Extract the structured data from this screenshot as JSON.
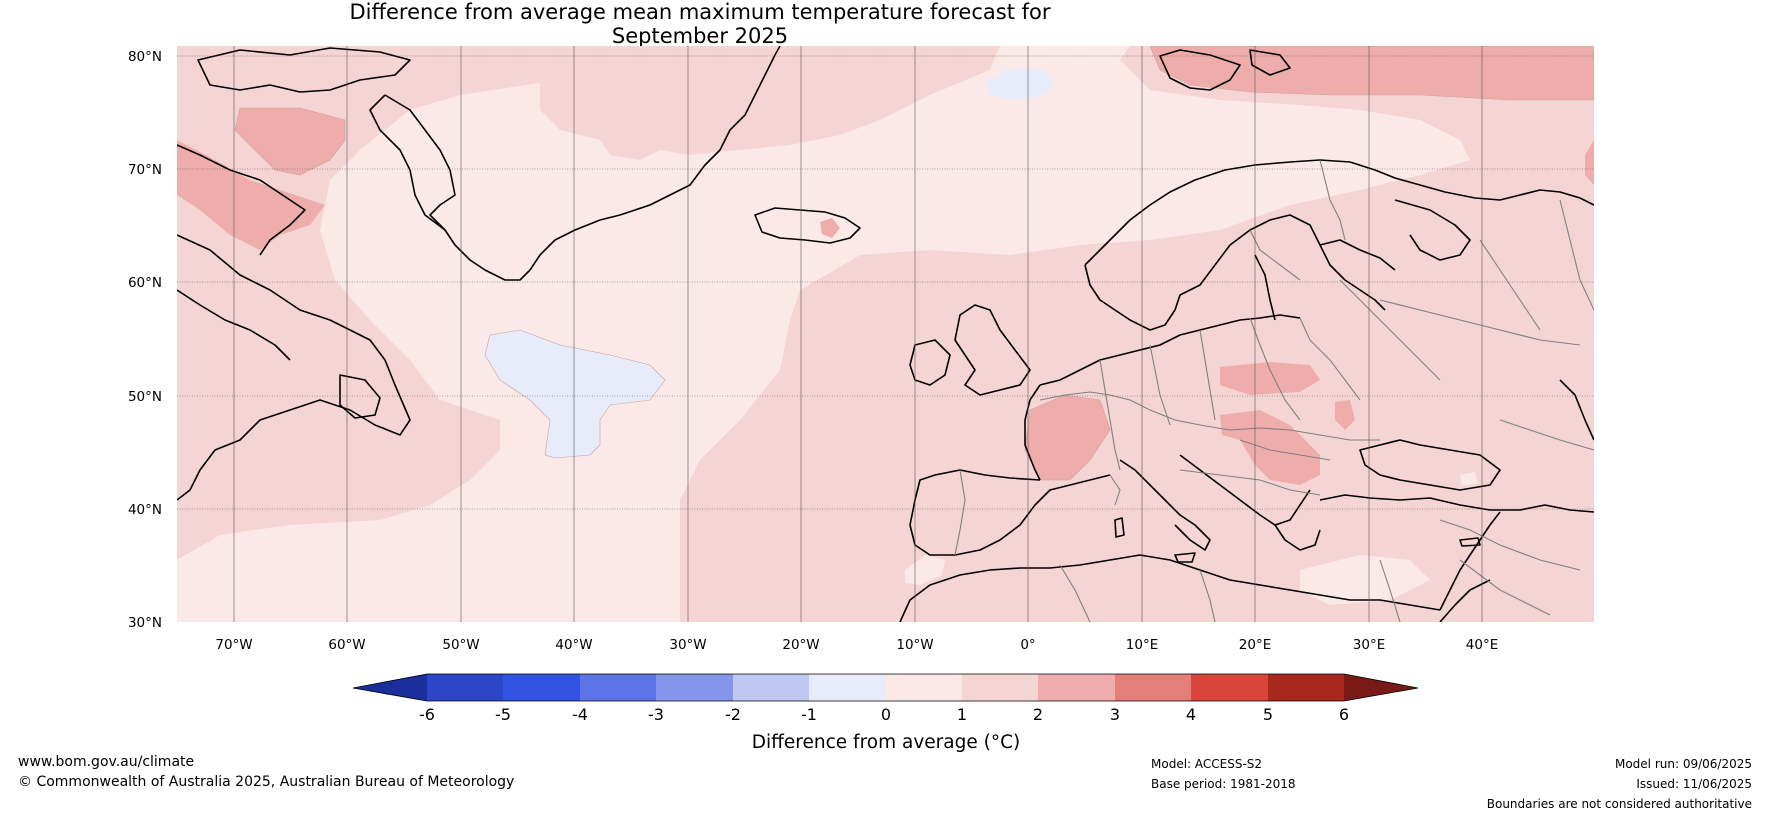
{
  "title": {
    "line1": "Difference from average mean maximum temperature forecast for",
    "line2": "September 2025"
  },
  "map": {
    "lat_labels": [
      "80°N",
      "70°N",
      "60°N",
      "50°N",
      "40°N",
      "30°N"
    ],
    "lon_labels": [
      "70°W",
      "60°W",
      "50°W",
      "40°W",
      "30°W",
      "20°W",
      "10°W",
      "0°",
      "10°E",
      "20°E",
      "30°E",
      "40°E"
    ],
    "colors": {
      "ocean_base": "#fbe9e8",
      "warm_1_2": "#f5d5d3",
      "warm_2_3": "#eeadab",
      "cool_0_1": "#e8ecfa",
      "coast": "#000000",
      "border": "#808080",
      "grid": "#555555"
    }
  },
  "colorbar": {
    "title": "Difference from average (°C)",
    "ticks": [
      "-6",
      "-5",
      "-4",
      "-3",
      "-2",
      "-1",
      "0",
      "1",
      "2",
      "3",
      "4",
      "5",
      "6"
    ],
    "colors": [
      "#1a2f9c",
      "#2d45c7",
      "#3153e0",
      "#5c74e6",
      "#8596ea",
      "#bec8f3",
      "#e8ecfa",
      "#fbe9e8",
      "#f5d5d3",
      "#eeadab",
      "#e47e79",
      "#d8453a",
      "#a82820",
      "#7a1a16"
    ]
  },
  "footer": {
    "website": "www.bom.gov.au/climate",
    "copyright": "© Commonwealth of Australia 2025, Australian Bureau of Meteorology",
    "model": "Model: ACCESS-S2",
    "base_period": "Base period: 1981-2018",
    "model_run": "Model run: 09/06/2025",
    "issued": "Issued: 11/06/2025",
    "disclaimer": "Boundaries are not considered authoritative"
  }
}
